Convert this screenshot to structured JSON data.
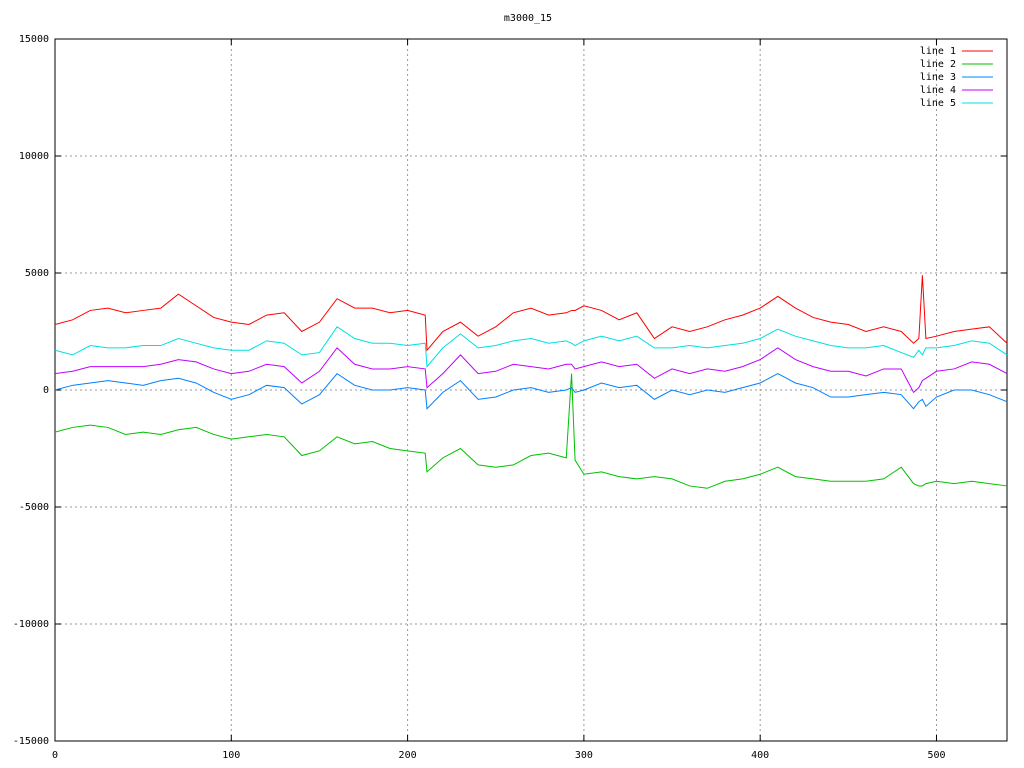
{
  "chart_data": {
    "type": "line",
    "title": "m3000_15",
    "x": [
      0,
      10,
      20,
      30,
      40,
      50,
      60,
      70,
      80,
      90,
      100,
      110,
      120,
      130,
      140,
      150,
      160,
      170,
      180,
      190,
      200,
      210,
      211,
      220,
      230,
      240,
      250,
      260,
      270,
      280,
      290,
      293,
      295,
      300,
      310,
      320,
      330,
      340,
      350,
      360,
      370,
      380,
      390,
      400,
      410,
      420,
      430,
      440,
      450,
      460,
      470,
      480,
      487,
      490,
      492,
      494,
      500,
      510,
      520,
      530,
      540
    ],
    "series": [
      {
        "name": "line 1",
        "color": "#ff0000",
        "values": [
          2800,
          3000,
          3400,
          3500,
          3300,
          3400,
          3500,
          4100,
          3600,
          3100,
          2900,
          2800,
          3200,
          3300,
          2500,
          2900,
          3900,
          3500,
          3500,
          3300,
          3400,
          3200,
          1700,
          2500,
          2900,
          2300,
          2700,
          3300,
          3500,
          3200,
          3300,
          3400,
          3400,
          3600,
          3400,
          3000,
          3300,
          2200,
          2700,
          2500,
          2700,
          3000,
          3200,
          3500,
          4000,
          3500,
          3100,
          2900,
          2800,
          2500,
          2700,
          2500,
          2000,
          2200,
          4900,
          2200,
          2300,
          2500,
          2600,
          2700,
          2000
        ]
      },
      {
        "name": "line 2",
        "color": "#00c000",
        "values": [
          -1800,
          -1600,
          -1500,
          -1600,
          -1900,
          -1800,
          -1900,
          -1700,
          -1600,
          -1900,
          -2100,
          -2000,
          -1900,
          -2000,
          -2800,
          -2600,
          -2000,
          -2300,
          -2200,
          -2500,
          -2600,
          -2700,
          -3500,
          -2900,
          -2500,
          -3200,
          -3300,
          -3200,
          -2800,
          -2700,
          -2900,
          700,
          -3000,
          -3600,
          -3500,
          -3700,
          -3800,
          -3700,
          -3800,
          -4100,
          -4200,
          -3900,
          -3800,
          -3600,
          -3300,
          -3700,
          -3800,
          -3900,
          -3900,
          -3900,
          -3800,
          -3300,
          -4000,
          -4100,
          -4100,
          -4000,
          -3900,
          -4000,
          -3900,
          -4000,
          -4100
        ]
      },
      {
        "name": "line 3",
        "color": "#0080ff",
        "values": [
          0,
          200,
          300,
          400,
          300,
          200,
          400,
          500,
          300,
          -100,
          -400,
          -200,
          200,
          100,
          -600,
          -200,
          700,
          200,
          0,
          0,
          100,
          0,
          -800,
          -100,
          400,
          -400,
          -300,
          0,
          100,
          -100,
          0,
          100,
          -100,
          0,
          300,
          100,
          200,
          -400,
          0,
          -200,
          0,
          -100,
          100,
          300,
          700,
          300,
          100,
          -300,
          -300,
          -200,
          -100,
          -200,
          -800,
          -500,
          -400,
          -700,
          -300,
          0,
          0,
          -200,
          -500
        ]
      },
      {
        "name": "line 4",
        "color": "#c000ff",
        "values": [
          700,
          800,
          1000,
          1000,
          1000,
          1000,
          1100,
          1300,
          1200,
          900,
          700,
          800,
          1100,
          1000,
          300,
          800,
          1800,
          1100,
          900,
          900,
          1000,
          900,
          100,
          700,
          1500,
          700,
          800,
          1100,
          1000,
          900,
          1100,
          1100,
          900,
          1000,
          1200,
          1000,
          1100,
          500,
          900,
          700,
          900,
          800,
          1000,
          1300,
          1800,
          1300,
          1000,
          800,
          800,
          600,
          900,
          900,
          -100,
          100,
          400,
          500,
          800,
          900,
          1200,
          1100,
          700
        ]
      },
      {
        "name": "line 5",
        "color": "#00e0e0",
        "values": [
          1700,
          1500,
          1900,
          1800,
          1800,
          1900,
          1900,
          2200,
          2000,
          1800,
          1700,
          1700,
          2100,
          2000,
          1500,
          1600,
          2700,
          2200,
          2000,
          2000,
          1900,
          2000,
          1000,
          1800,
          2400,
          1800,
          1900,
          2100,
          2200,
          2000,
          2100,
          2000,
          1900,
          2100,
          2300,
          2100,
          2300,
          1800,
          1800,
          1900,
          1800,
          1900,
          2000,
          2200,
          2600,
          2300,
          2100,
          1900,
          1800,
          1800,
          1900,
          1600,
          1400,
          1700,
          1500,
          1800,
          1800,
          1900,
          2100,
          2000,
          1500
        ]
      }
    ],
    "xlim": [
      0,
      540
    ],
    "ylim": [
      -15000,
      15000
    ],
    "xticks": [
      0,
      100,
      200,
      300,
      400,
      500
    ],
    "yticks": [
      -15000,
      -10000,
      -5000,
      0,
      5000,
      10000,
      15000
    ],
    "grid": true,
    "legend": "top-right"
  }
}
